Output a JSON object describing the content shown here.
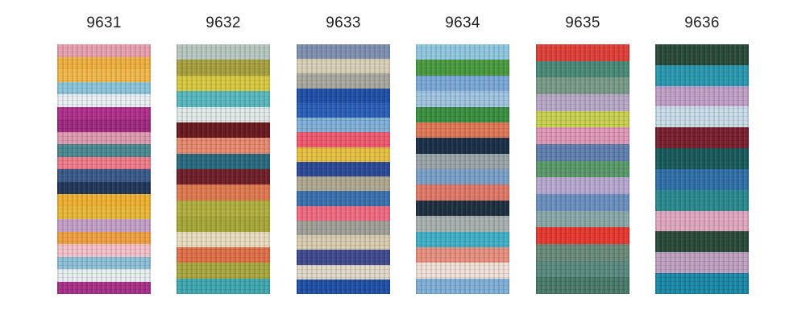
{
  "swatches": [
    {
      "code": "9631",
      "colors": [
        "#e8a0b0",
        "#f0b040",
        "#f2b84a",
        "#8cc4dc",
        "#e8eef2",
        "#b0308c",
        "#a02a80",
        "#e09ab0",
        "#4a8a90",
        "#f07a8a",
        "#3a5a8a",
        "#22385a",
        "#f0b030",
        "#e8b838",
        "#c4a0c8",
        "#f0a040",
        "#f2c0c8",
        "#8cc0d8",
        "#e8eef0",
        "#a8308a"
      ]
    },
    {
      "code": "9632",
      "colors": [
        "#b8c8c0",
        "#a8a040",
        "#d8c840",
        "#58b8c0",
        "#e0e8e8",
        "#6a1a20",
        "#e88a70",
        "#2a6a80",
        "#702028",
        "#e07850",
        "#b0b040",
        "#a8a83a",
        "#e8dcc0",
        "#e07048",
        "#a8a840",
        "#40a8b0"
      ]
    },
    {
      "code": "9633",
      "colors": [
        "#8090b0",
        "#d8d0b8",
        "#a8a8a0",
        "#2050a8",
        "#2a60b8",
        "#80b0d8",
        "#f05a70",
        "#e8c040",
        "#2a4a98",
        "#b0a890",
        "#3a70b0",
        "#f06a80",
        "#a0a098",
        "#d8ccb0",
        "#404a90",
        "#e0d8c8",
        "#2050a8"
      ]
    },
    {
      "code": "9634",
      "colors": [
        "#90c8e0",
        "#4a9a40",
        "#7aa8d8",
        "#a0c4e0",
        "#3a9040",
        "#e07858",
        "#1a3048",
        "#9aa4a8",
        "#7aa0c8",
        "#e07868",
        "#1e3040",
        "#a8b0b0",
        "#40b0c8",
        "#e89080",
        "#f0e0d8",
        "#80b0d8"
      ]
    },
    {
      "code": "9635",
      "colors": [
        "#e04038",
        "#4a8a78",
        "#7a9a88",
        "#b8a8c8",
        "#c8d050",
        "#e098b8",
        "#6080b0",
        "#5a9a6a",
        "#b8a8d0",
        "#6a90c0",
        "#8aa8a8",
        "#e83830",
        "#6a8a7a",
        "#5a8a80",
        "#4a7a6a"
      ]
    },
    {
      "code": "9636",
      "colors": [
        "#2a4a38",
        "#2a98b0",
        "#c0a0c8",
        "#c8dce8",
        "#7a2030",
        "#1a5a5a",
        "#3070a8",
        "#2a8a90",
        "#e0a8c0",
        "#2a4a3a",
        "#c0a0c0",
        "#1a8aa8"
      ]
    }
  ]
}
